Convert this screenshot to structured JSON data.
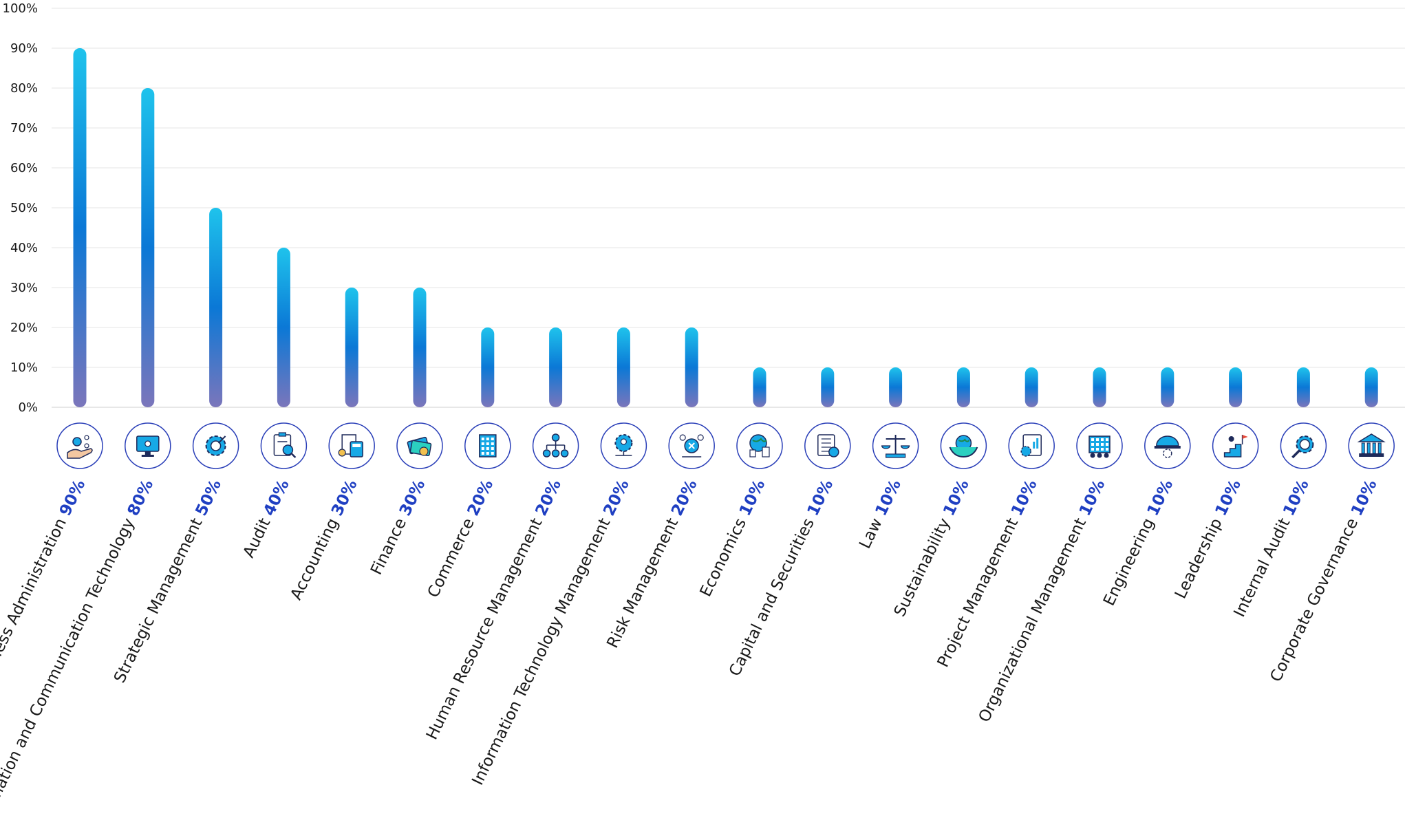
{
  "chart_data": {
    "type": "bar",
    "title": "",
    "xlabel": "",
    "ylabel": "",
    "ylim": [
      0,
      100
    ],
    "yticks": [
      "0%",
      "10%",
      "20%",
      "30%",
      "40%",
      "50%",
      "60%",
      "70%",
      "80%",
      "90%",
      "100%"
    ],
    "grid": true,
    "legend": "none",
    "categories": [
      "Business Administration",
      "Information and Communication Technology",
      "Strategic Management",
      "Audit",
      "Accounting",
      "Finance",
      "Commerce",
      "Human Resource Management",
      "Information Technology Management",
      "Risk Management",
      "Economics",
      "Capital and Securities",
      "Law",
      "Sustainability",
      "Project Management",
      "Organizational Management",
      "Engineering",
      "Leadership",
      "Internal Audit",
      "Corporate Governance"
    ],
    "values": [
      90,
      80,
      50,
      40,
      30,
      30,
      20,
      20,
      20,
      20,
      10,
      10,
      10,
      10,
      10,
      10,
      10,
      10,
      10,
      10
    ],
    "value_labels": [
      "90%",
      "80%",
      "50%",
      "40%",
      "30%",
      "30%",
      "20%",
      "20%",
      "20%",
      "20%",
      "10%",
      "10%",
      "10%",
      "10%",
      "10%",
      "10%",
      "10%",
      "10%",
      "10%",
      "10%"
    ],
    "icons": [
      "hand-with-gears-icon",
      "monitor-network-icon",
      "gear-with-hand-icon",
      "clipboard-magnifier-icon",
      "calculator-document-icon",
      "cash-money-icon",
      "office-building-icon",
      "org-chart-icon",
      "gear-person-network-icon",
      "risk-network-icon",
      "globe-buildings-icon",
      "document-coin-icon",
      "scales-of-justice-icon",
      "hands-holding-earth-icon",
      "project-gear-chart-icon",
      "building-people-icon",
      "hard-hat-gear-icon",
      "climbing-stairs-flag-icon",
      "magnifier-gear-icon",
      "government-building-icon"
    ],
    "colors": {
      "bar_top": "#1fc3ec",
      "bar_mid": "#0b78d6",
      "bar_bottom": "#7b76bb",
      "value_text": "#1f3fc2",
      "icon_stroke": "#2a3fb8",
      "icon_fill": "#17a9e6",
      "icon_dark": "#1e2a5a"
    }
  }
}
